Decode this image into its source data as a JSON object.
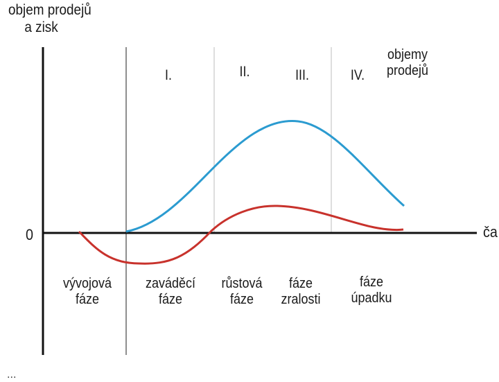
{
  "y_axis_label": [
    "objem prodejů",
    "a zisk"
  ],
  "x_axis_label": "ča",
  "zero_label": "0",
  "sales_label": [
    "objemy",
    "prodejů"
  ],
  "phase_numbers": [
    "I.",
    "II.",
    "III.",
    "IV."
  ],
  "phases": [
    [
      "vývojová",
      "fáze"
    ],
    [
      "zaváděcí",
      "fáze"
    ],
    [
      "růstová",
      "fáze"
    ],
    [
      "fáze",
      "zralosti"
    ],
    [
      "fáze",
      "úpadku"
    ]
  ],
  "bottom_partial_text": "...",
  "colors": {
    "sales_curve": "#2b9bd0",
    "profit_curve": "#c8322c",
    "axis": "#111111",
    "divider": "#c8c8c8",
    "divider_dark": "#444444"
  }
}
